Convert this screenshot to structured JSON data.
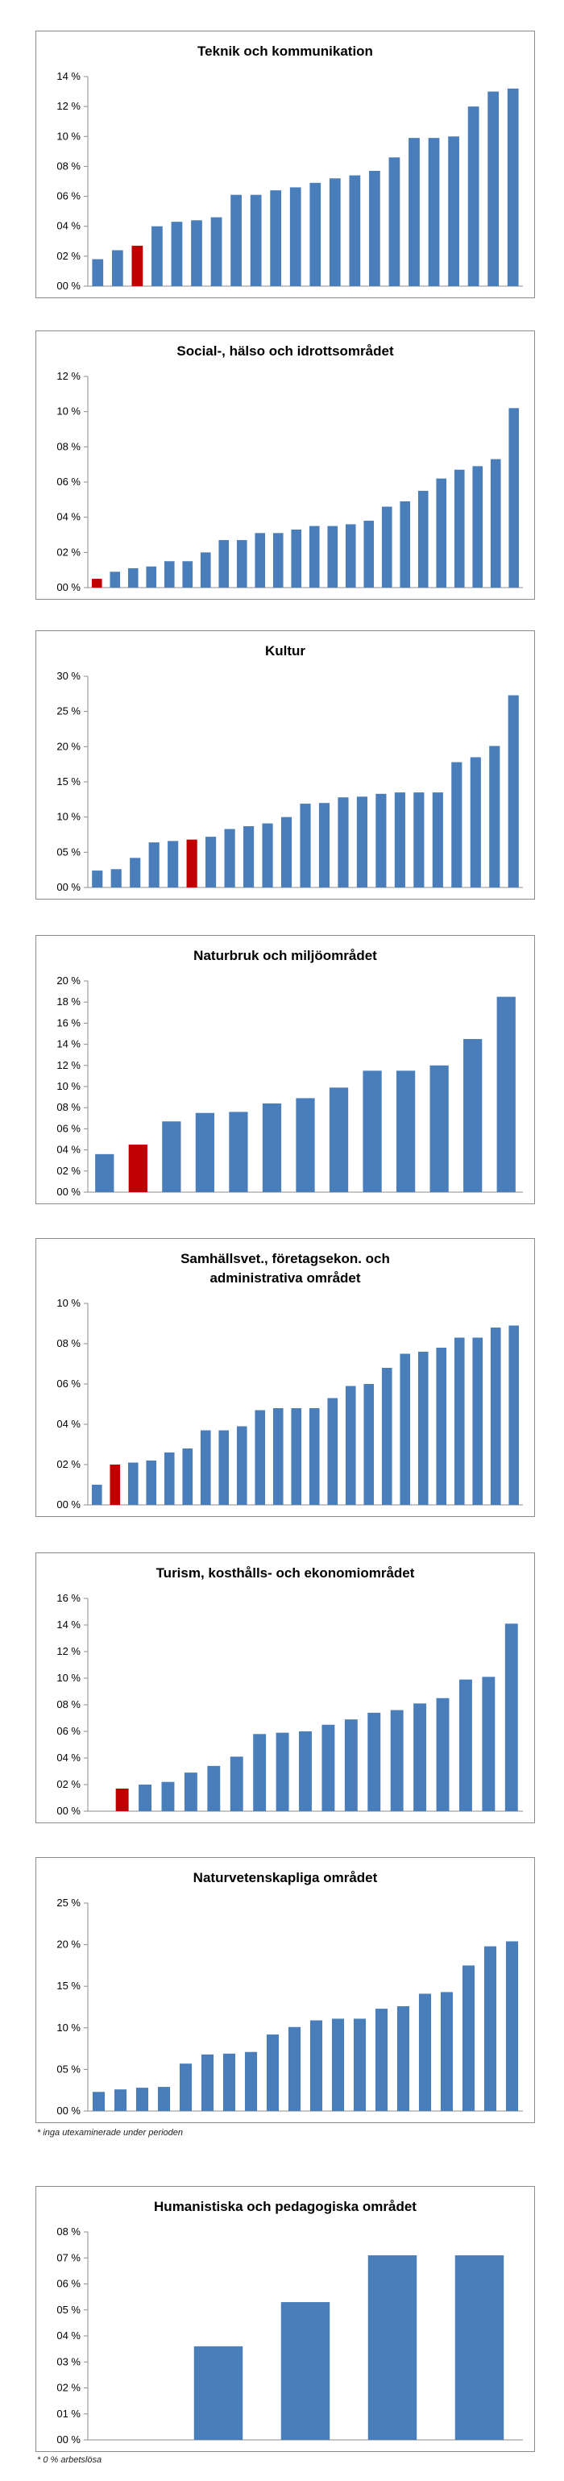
{
  "chart_data": [
    {
      "type": "bar",
      "title": "Teknik och kommunikation",
      "title_lines": [
        "Teknik och kommunikation"
      ],
      "ylim": [
        0,
        14
      ],
      "yticks": [
        0,
        2,
        4,
        6,
        8,
        10,
        12,
        14
      ],
      "ytick_labels": [
        "00 %",
        "02 %",
        "04 %",
        "06 %",
        "08 %",
        "10 %",
        "12 %",
        "14 %"
      ],
      "values": [
        1.8,
        2.4,
        2.7,
        4.0,
        4.3,
        4.4,
        4.6,
        6.1,
        6.1,
        6.4,
        6.6,
        6.9,
        7.2,
        7.4,
        7.7,
        8.6,
        9.9,
        9.9,
        10.0,
        12.0,
        13.0,
        13.2
      ],
      "highlight_index": 2,
      "bar_color": "#4a7ebb",
      "highlight_color": "#c00000",
      "grid": false
    },
    {
      "type": "bar",
      "title": "Social-, hälso och idrottsområdet",
      "title_lines": [
        "Social-, hälso och idrottsområdet"
      ],
      "ylim": [
        0,
        12
      ],
      "yticks": [
        0,
        2,
        4,
        6,
        8,
        10,
        12
      ],
      "ytick_labels": [
        "00 %",
        "02 %",
        "04 %",
        "06 %",
        "08 %",
        "10 %",
        "12 %"
      ],
      "values": [
        0.5,
        0.9,
        1.1,
        1.2,
        1.5,
        1.5,
        2.0,
        2.7,
        2.7,
        3.1,
        3.1,
        3.3,
        3.5,
        3.5,
        3.6,
        3.8,
        4.6,
        4.9,
        5.5,
        6.2,
        6.7,
        6.9,
        7.3,
        10.2
      ],
      "highlight_index": 0,
      "bar_color": "#4a7ebb",
      "highlight_color": "#c00000",
      "grid": false
    },
    {
      "type": "bar",
      "title": "Kultur",
      "title_lines": [
        "Kultur"
      ],
      "ylim": [
        0,
        30
      ],
      "yticks": [
        0,
        5,
        10,
        15,
        20,
        25,
        30
      ],
      "ytick_labels": [
        "00 %",
        "05 %",
        "10 %",
        "15 %",
        "20 %",
        "25 %",
        "30 %"
      ],
      "values": [
        2.4,
        2.6,
        4.2,
        6.4,
        6.6,
        6.8,
        7.2,
        8.3,
        8.7,
        9.1,
        10.0,
        11.9,
        12.0,
        12.8,
        12.9,
        13.3,
        13.5,
        13.5,
        13.5,
        17.8,
        18.5,
        20.1,
        27.3
      ],
      "highlight_index": 5,
      "bar_color": "#4a7ebb",
      "highlight_color": "#c00000",
      "grid": false
    },
    {
      "type": "bar",
      "title": "Naturbruk och miljöområdet",
      "title_lines": [
        "Naturbruk och miljöområdet"
      ],
      "ylim": [
        0,
        20
      ],
      "yticks": [
        0,
        2,
        4,
        6,
        8,
        10,
        12,
        14,
        16,
        18,
        20
      ],
      "ytick_labels": [
        "00 %",
        "02 %",
        "04 %",
        "06 %",
        "08 %",
        "10 %",
        "12 %",
        "14 %",
        "16 %",
        "18 %",
        "20 %"
      ],
      "values": [
        3.6,
        4.5,
        6.7,
        7.5,
        7.6,
        8.4,
        8.9,
        9.9,
        11.5,
        11.5,
        12.0,
        14.5,
        18.5
      ],
      "highlight_index": 1,
      "bar_color": "#4a7ebb",
      "highlight_color": "#c00000",
      "grid": false
    },
    {
      "type": "bar",
      "title": "Samhällsvet., företagsekon. och administrativa området",
      "title_lines": [
        "Samhällsvet., företagsekon. och",
        "administrativa området"
      ],
      "ylim": [
        0,
        10
      ],
      "yticks": [
        0,
        2,
        4,
        6,
        8,
        10
      ],
      "ytick_labels": [
        "00 %",
        "02 %",
        "04 %",
        "06 %",
        "08 %",
        "10 %"
      ],
      "values": [
        1.0,
        2.0,
        2.1,
        2.2,
        2.6,
        2.8,
        3.7,
        3.7,
        3.9,
        4.7,
        4.8,
        4.8,
        4.8,
        5.3,
        5.9,
        6.0,
        6.8,
        7.5,
        7.6,
        7.8,
        8.3,
        8.3,
        8.8,
        8.9
      ],
      "highlight_index": 1,
      "bar_color": "#4a7ebb",
      "highlight_color": "#c00000",
      "grid": false
    },
    {
      "type": "bar",
      "title": "Turism, kosthålls- och ekonomiområdet",
      "title_lines": [
        "Turism, kosthålls- och ekonomiområdet"
      ],
      "ylim": [
        0,
        16
      ],
      "yticks": [
        0,
        2,
        4,
        6,
        8,
        10,
        12,
        14,
        16
      ],
      "ytick_labels": [
        "00 %",
        "02 %",
        "04 %",
        "06 %",
        "08 %",
        "10 %",
        "12 %",
        "14 %",
        "16 %"
      ],
      "values": [
        0,
        1.7,
        2.0,
        2.2,
        2.9,
        3.4,
        4.1,
        5.8,
        5.9,
        6.0,
        6.5,
        6.9,
        7.4,
        7.6,
        8.1,
        8.5,
        9.9,
        10.1,
        14.1
      ],
      "highlight_index": 1,
      "bar_color": "#4a7ebb",
      "highlight_color": "#c00000",
      "grid": false
    },
    {
      "type": "bar",
      "title": "Naturvetenskapliga området",
      "title_lines": [
        "Naturvetenskapliga området"
      ],
      "ylim": [
        0,
        25
      ],
      "yticks": [
        0,
        5,
        10,
        15,
        20,
        25
      ],
      "ytick_labels": [
        "00 %",
        "05 %",
        "10 %",
        "15 %",
        "20 %",
        "25 %"
      ],
      "values": [
        2.3,
        2.6,
        2.8,
        2.9,
        5.7,
        6.8,
        6.9,
        7.1,
        9.2,
        10.1,
        10.9,
        11.1,
        11.1,
        12.3,
        12.6,
        14.1,
        14.3,
        17.5,
        19.8,
        20.4
      ],
      "highlight_index": -1,
      "bar_color": "#4a7ebb",
      "highlight_color": "#c00000",
      "grid": false
    },
    {
      "type": "bar",
      "title": "Humanistiska och pedagogiska området",
      "title_lines": [
        "Humanistiska och pedagogiska området"
      ],
      "ylim": [
        0,
        8
      ],
      "yticks": [
        0,
        1,
        2,
        3,
        4,
        5,
        6,
        7,
        8
      ],
      "ytick_labels": [
        "00 %",
        "01 %",
        "02 %",
        "03 %",
        "04 %",
        "05 %",
        "06 %",
        "07 %",
        "08 %"
      ],
      "values": [
        0,
        3.6,
        5.3,
        7.1,
        7.1
      ],
      "highlight_index": -1,
      "bar_color": "#4a7ebb",
      "highlight_color": "#c00000",
      "grid": false
    }
  ],
  "footnotes": {
    "naturvetenskapliga": "* inga utexaminerade under perioden",
    "humanistiska": "* 0 % arbetslösa"
  }
}
